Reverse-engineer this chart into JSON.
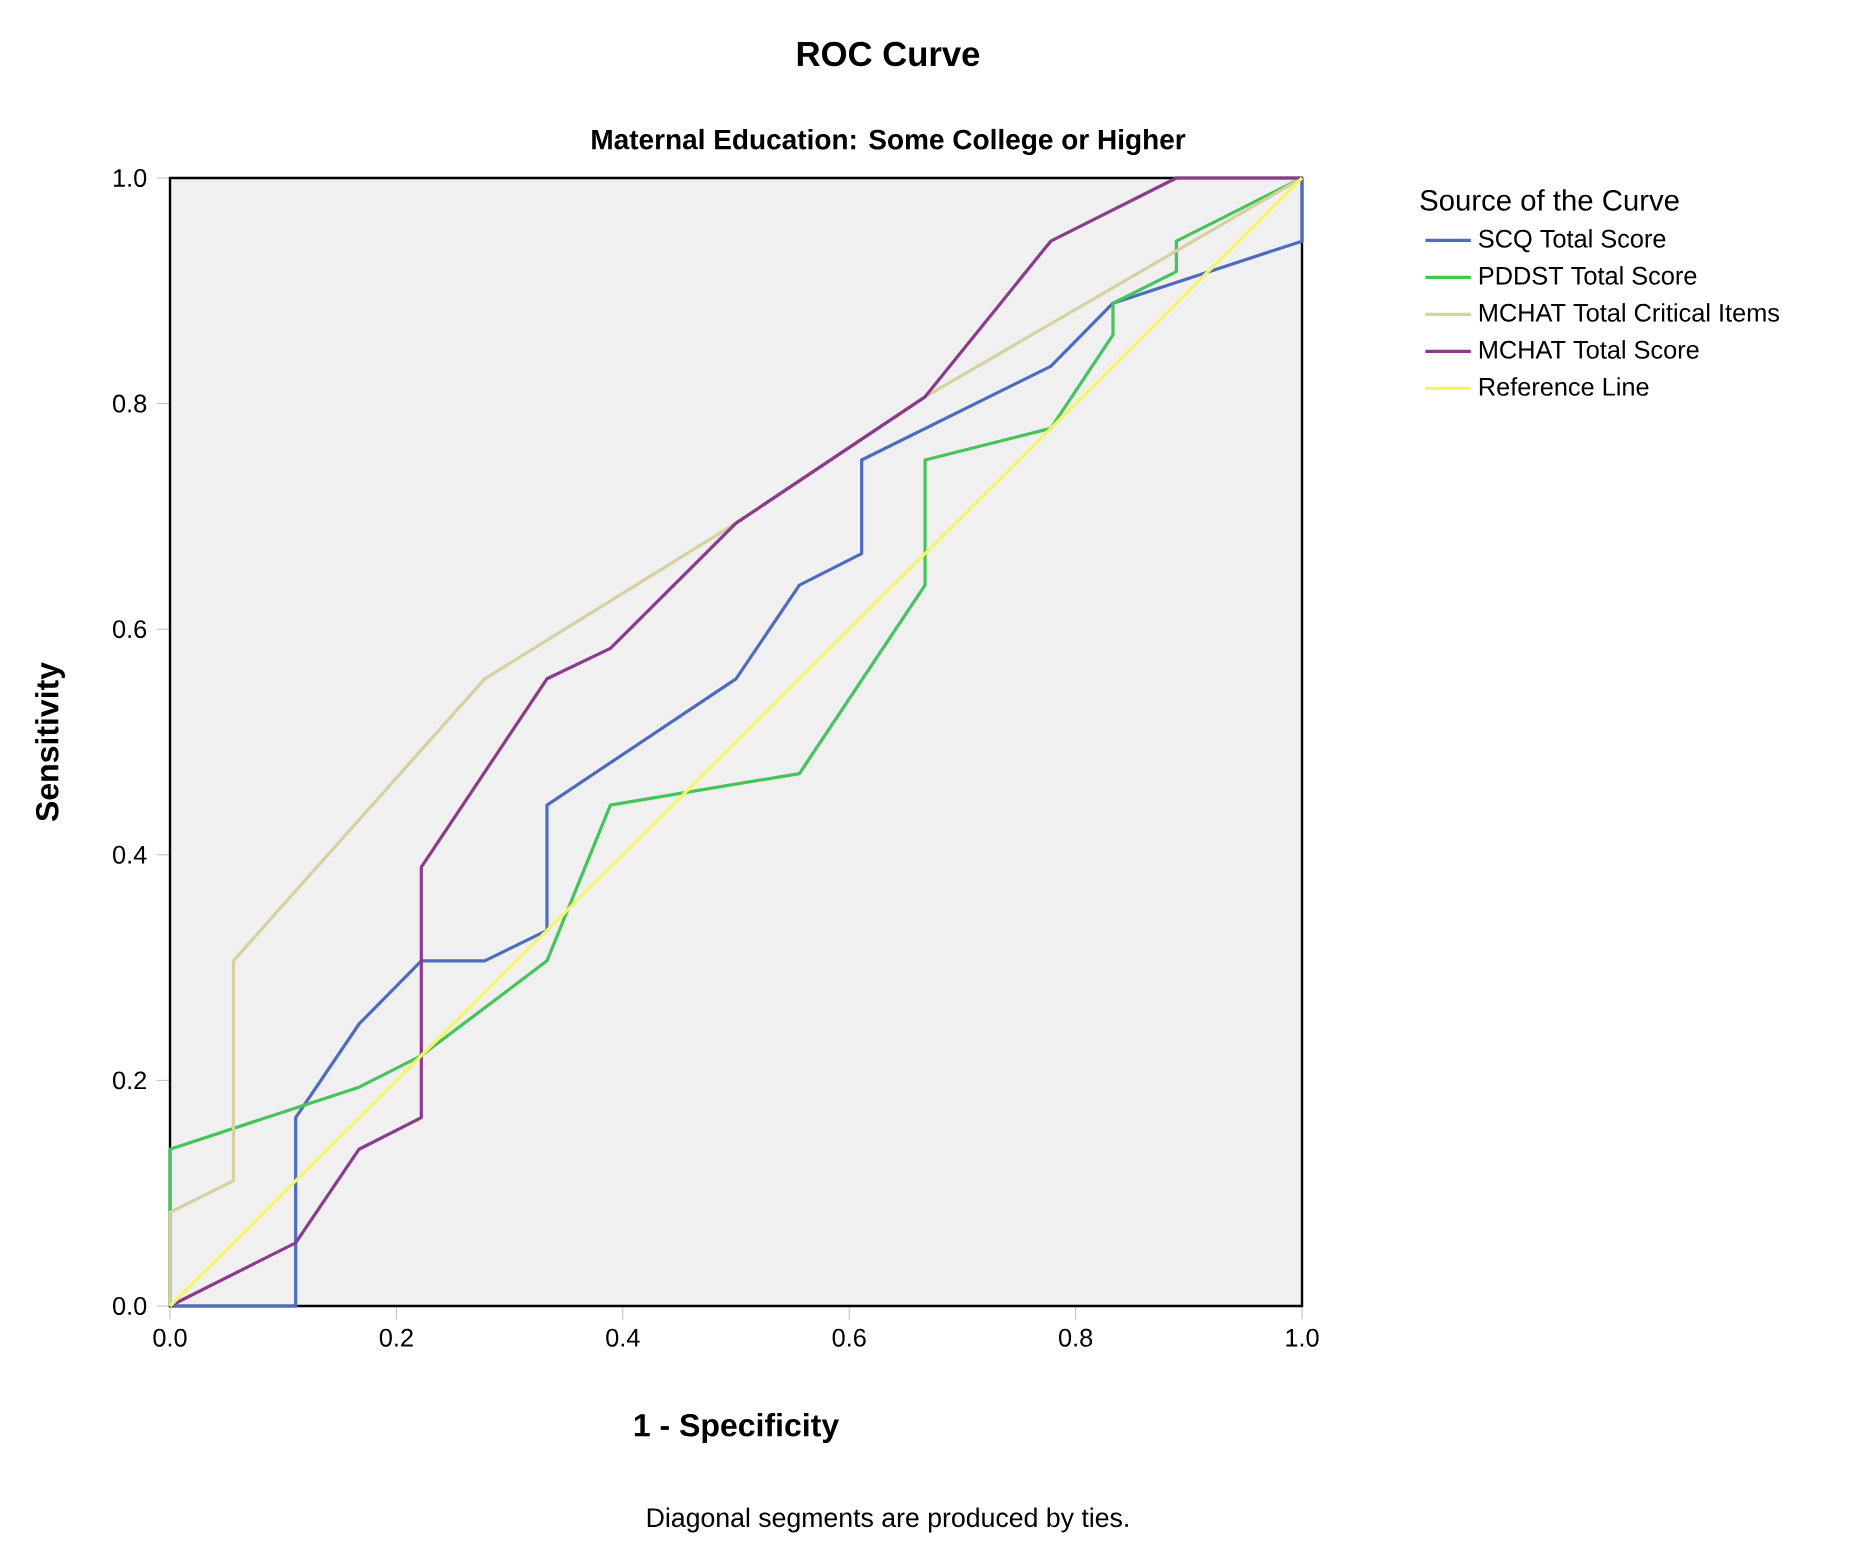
{
  "chart_data": {
    "type": "line",
    "title": "ROC Curve",
    "subtitle": "Maternal Education: Some College or Higher",
    "xlabel": "1 - Specificity",
    "ylabel": "Sensitivity",
    "legend_title": "Source of the Curve",
    "annotations": [
      "Diagonal segments are produced by ties."
    ],
    "xlim": [
      0,
      1
    ],
    "ylim": [
      0,
      1
    ],
    "xticks": [
      {
        "value": 0,
        "label": "0.0"
      },
      {
        "value": 0.2,
        "label": "0.2"
      },
      {
        "value": 0.4,
        "label": "0.4"
      },
      {
        "value": 0.6,
        "label": "0.6"
      },
      {
        "value": 0.8,
        "label": "0.8"
      },
      {
        "value": 1,
        "label": "1.0"
      }
    ],
    "yticks": [
      {
        "value": 0,
        "label": "0.0"
      },
      {
        "value": 0.2,
        "label": "0.2"
      },
      {
        "value": 0.4,
        "label": "0.4"
      },
      {
        "value": 0.6,
        "label": "0.6"
      },
      {
        "value": 0.8,
        "label": "0.8"
      },
      {
        "value": 1,
        "label": "1.0"
      }
    ],
    "legend": "top right",
    "series": [
      {
        "name": "SCQ Total Score",
        "color": "#4f6bc0",
        "x": [
          0,
          0.111,
          0.111,
          0.167,
          0.222,
          0.278,
          0.333,
          0.333,
          0.5,
          0.556,
          0.611,
          0.611,
          0.778,
          0.833,
          1,
          1
        ],
        "values": [
          0,
          0,
          0.167,
          0.25,
          0.306,
          0.306,
          0.333,
          0.444,
          0.556,
          0.639,
          0.667,
          0.75,
          0.833,
          0.889,
          0.944,
          1
        ]
      },
      {
        "name": "PDDST Total Score",
        "color": "#45c45a",
        "x": [
          0,
          0,
          0.167,
          0.222,
          0.333,
          0.389,
          0.556,
          0.667,
          0.667,
          0.778,
          0.833,
          0.833,
          0.889,
          0.889,
          1
        ],
        "values": [
          0,
          0.139,
          0.194,
          0.222,
          0.306,
          0.444,
          0.472,
          0.639,
          0.75,
          0.778,
          0.861,
          0.889,
          0.917,
          0.944,
          1
        ]
      },
      {
        "name": "MCHAT Total Critical Items",
        "color": "#d6d1a0",
        "x": [
          0,
          0,
          0.056,
          0.056,
          0.278,
          0.5,
          0.667,
          1
        ],
        "values": [
          0,
          0.083,
          0.111,
          0.306,
          0.556,
          0.694,
          0.806,
          1
        ]
      },
      {
        "name": "MCHAT Total Score",
        "color": "#8b3a8e",
        "x": [
          0,
          0.111,
          0.167,
          0.222,
          0.222,
          0.333,
          0.389,
          0.5,
          0.667,
          0.778,
          0.889,
          1
        ],
        "values": [
          0,
          0.056,
          0.139,
          0.167,
          0.389,
          0.556,
          0.583,
          0.694,
          0.806,
          0.944,
          1,
          1
        ]
      },
      {
        "name": "Reference Line",
        "color": "#f5f56a",
        "x": [
          0,
          1
        ],
        "values": [
          0,
          1
        ]
      }
    ]
  }
}
